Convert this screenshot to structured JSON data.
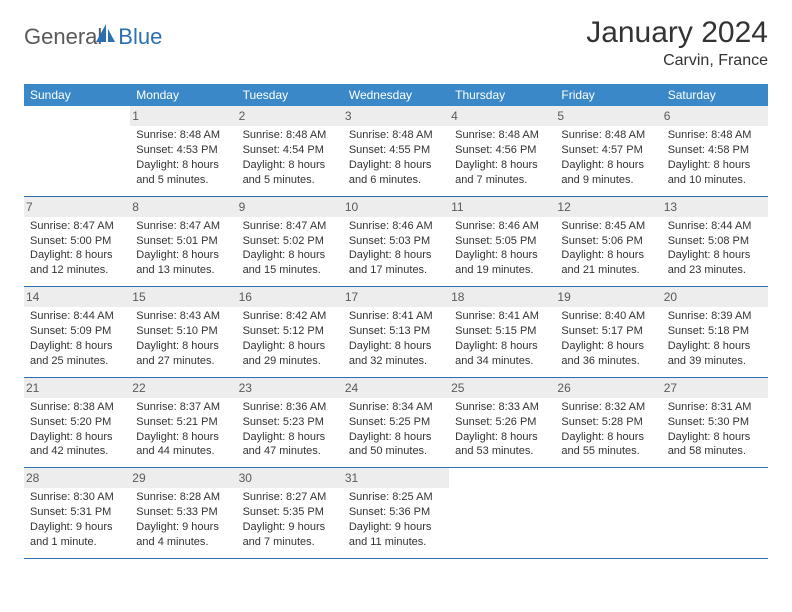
{
  "brand": {
    "part1": "General",
    "part2": "Blue"
  },
  "title": "January 2024",
  "location": "Carvin, France",
  "colors": {
    "header_bg": "#3b88c8",
    "header_text": "#ffffff",
    "row_divider": "#2c6fb3",
    "daynum_bg": "#ededed",
    "body_text": "#333333",
    "logo_gray": "#5a5a5a",
    "logo_blue": "#2c6fb3",
    "page_bg": "#ffffff"
  },
  "typography": {
    "title_fontsize": 30,
    "location_fontsize": 16,
    "dayheader_fontsize": 12,
    "cell_fontsize": 11,
    "logo_fontsize": 22
  },
  "day_headers": [
    "Sunday",
    "Monday",
    "Tuesday",
    "Wednesday",
    "Thursday",
    "Friday",
    "Saturday"
  ],
  "weeks": [
    [
      {
        "n": "",
        "sunrise": "",
        "sunset": "",
        "daylight": ""
      },
      {
        "n": "1",
        "sunrise": "Sunrise: 8:48 AM",
        "sunset": "Sunset: 4:53 PM",
        "daylight": "Daylight: 8 hours and 5 minutes."
      },
      {
        "n": "2",
        "sunrise": "Sunrise: 8:48 AM",
        "sunset": "Sunset: 4:54 PM",
        "daylight": "Daylight: 8 hours and 5 minutes."
      },
      {
        "n": "3",
        "sunrise": "Sunrise: 8:48 AM",
        "sunset": "Sunset: 4:55 PM",
        "daylight": "Daylight: 8 hours and 6 minutes."
      },
      {
        "n": "4",
        "sunrise": "Sunrise: 8:48 AM",
        "sunset": "Sunset: 4:56 PM",
        "daylight": "Daylight: 8 hours and 7 minutes."
      },
      {
        "n": "5",
        "sunrise": "Sunrise: 8:48 AM",
        "sunset": "Sunset: 4:57 PM",
        "daylight": "Daylight: 8 hours and 9 minutes."
      },
      {
        "n": "6",
        "sunrise": "Sunrise: 8:48 AM",
        "sunset": "Sunset: 4:58 PM",
        "daylight": "Daylight: 8 hours and 10 minutes."
      }
    ],
    [
      {
        "n": "7",
        "sunrise": "Sunrise: 8:47 AM",
        "sunset": "Sunset: 5:00 PM",
        "daylight": "Daylight: 8 hours and 12 minutes."
      },
      {
        "n": "8",
        "sunrise": "Sunrise: 8:47 AM",
        "sunset": "Sunset: 5:01 PM",
        "daylight": "Daylight: 8 hours and 13 minutes."
      },
      {
        "n": "9",
        "sunrise": "Sunrise: 8:47 AM",
        "sunset": "Sunset: 5:02 PM",
        "daylight": "Daylight: 8 hours and 15 minutes."
      },
      {
        "n": "10",
        "sunrise": "Sunrise: 8:46 AM",
        "sunset": "Sunset: 5:03 PM",
        "daylight": "Daylight: 8 hours and 17 minutes."
      },
      {
        "n": "11",
        "sunrise": "Sunrise: 8:46 AM",
        "sunset": "Sunset: 5:05 PM",
        "daylight": "Daylight: 8 hours and 19 minutes."
      },
      {
        "n": "12",
        "sunrise": "Sunrise: 8:45 AM",
        "sunset": "Sunset: 5:06 PM",
        "daylight": "Daylight: 8 hours and 21 minutes."
      },
      {
        "n": "13",
        "sunrise": "Sunrise: 8:44 AM",
        "sunset": "Sunset: 5:08 PM",
        "daylight": "Daylight: 8 hours and 23 minutes."
      }
    ],
    [
      {
        "n": "14",
        "sunrise": "Sunrise: 8:44 AM",
        "sunset": "Sunset: 5:09 PM",
        "daylight": "Daylight: 8 hours and 25 minutes."
      },
      {
        "n": "15",
        "sunrise": "Sunrise: 8:43 AM",
        "sunset": "Sunset: 5:10 PM",
        "daylight": "Daylight: 8 hours and 27 minutes."
      },
      {
        "n": "16",
        "sunrise": "Sunrise: 8:42 AM",
        "sunset": "Sunset: 5:12 PM",
        "daylight": "Daylight: 8 hours and 29 minutes."
      },
      {
        "n": "17",
        "sunrise": "Sunrise: 8:41 AM",
        "sunset": "Sunset: 5:13 PM",
        "daylight": "Daylight: 8 hours and 32 minutes."
      },
      {
        "n": "18",
        "sunrise": "Sunrise: 8:41 AM",
        "sunset": "Sunset: 5:15 PM",
        "daylight": "Daylight: 8 hours and 34 minutes."
      },
      {
        "n": "19",
        "sunrise": "Sunrise: 8:40 AM",
        "sunset": "Sunset: 5:17 PM",
        "daylight": "Daylight: 8 hours and 36 minutes."
      },
      {
        "n": "20",
        "sunrise": "Sunrise: 8:39 AM",
        "sunset": "Sunset: 5:18 PM",
        "daylight": "Daylight: 8 hours and 39 minutes."
      }
    ],
    [
      {
        "n": "21",
        "sunrise": "Sunrise: 8:38 AM",
        "sunset": "Sunset: 5:20 PM",
        "daylight": "Daylight: 8 hours and 42 minutes."
      },
      {
        "n": "22",
        "sunrise": "Sunrise: 8:37 AM",
        "sunset": "Sunset: 5:21 PM",
        "daylight": "Daylight: 8 hours and 44 minutes."
      },
      {
        "n": "23",
        "sunrise": "Sunrise: 8:36 AM",
        "sunset": "Sunset: 5:23 PM",
        "daylight": "Daylight: 8 hours and 47 minutes."
      },
      {
        "n": "24",
        "sunrise": "Sunrise: 8:34 AM",
        "sunset": "Sunset: 5:25 PM",
        "daylight": "Daylight: 8 hours and 50 minutes."
      },
      {
        "n": "25",
        "sunrise": "Sunrise: 8:33 AM",
        "sunset": "Sunset: 5:26 PM",
        "daylight": "Daylight: 8 hours and 53 minutes."
      },
      {
        "n": "26",
        "sunrise": "Sunrise: 8:32 AM",
        "sunset": "Sunset: 5:28 PM",
        "daylight": "Daylight: 8 hours and 55 minutes."
      },
      {
        "n": "27",
        "sunrise": "Sunrise: 8:31 AM",
        "sunset": "Sunset: 5:30 PM",
        "daylight": "Daylight: 8 hours and 58 minutes."
      }
    ],
    [
      {
        "n": "28",
        "sunrise": "Sunrise: 8:30 AM",
        "sunset": "Sunset: 5:31 PM",
        "daylight": "Daylight: 9 hours and 1 minute."
      },
      {
        "n": "29",
        "sunrise": "Sunrise: 8:28 AM",
        "sunset": "Sunset: 5:33 PM",
        "daylight": "Daylight: 9 hours and 4 minutes."
      },
      {
        "n": "30",
        "sunrise": "Sunrise: 8:27 AM",
        "sunset": "Sunset: 5:35 PM",
        "daylight": "Daylight: 9 hours and 7 minutes."
      },
      {
        "n": "31",
        "sunrise": "Sunrise: 8:25 AM",
        "sunset": "Sunset: 5:36 PM",
        "daylight": "Daylight: 9 hours and 11 minutes."
      },
      {
        "n": "",
        "sunrise": "",
        "sunset": "",
        "daylight": ""
      },
      {
        "n": "",
        "sunrise": "",
        "sunset": "",
        "daylight": ""
      },
      {
        "n": "",
        "sunrise": "",
        "sunset": "",
        "daylight": ""
      }
    ]
  ]
}
